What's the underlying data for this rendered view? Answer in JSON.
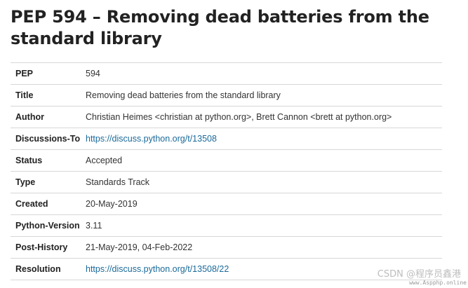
{
  "page": {
    "title": "PEP 594 – Removing dead batteries from the standard library"
  },
  "headers": [
    {
      "label": "PEP",
      "value": "594",
      "is_link": false
    },
    {
      "label": "Title",
      "value": "Removing dead batteries from the standard library",
      "is_link": false
    },
    {
      "label": "Author",
      "value": "Christian Heimes <christian at python.org>, Brett Cannon <brett at python.org>",
      "is_link": false
    },
    {
      "label": "Discussions-To",
      "value": "https://discuss.python.org/t/13508",
      "is_link": true
    },
    {
      "label": "Status",
      "value": "Accepted",
      "is_link": false
    },
    {
      "label": "Type",
      "value": "Standards Track",
      "is_link": false
    },
    {
      "label": "Created",
      "value": "20-May-2019",
      "is_link": false
    },
    {
      "label": "Python-Version",
      "value": "3.11",
      "is_link": false
    },
    {
      "label": "Post-History",
      "value": "21-May-2019, 04-Feb-2022",
      "is_link": false
    },
    {
      "label": "Resolution",
      "value": "https://discuss.python.org/t/13508/22",
      "is_link": true
    }
  ],
  "watermark": {
    "text": "CSDN @程序员鑫港",
    "subtext": "www.Aspphp.online"
  },
  "colors": {
    "link": "#1a6a9a",
    "title": "#222222",
    "rule": "#d7d7d7"
  }
}
